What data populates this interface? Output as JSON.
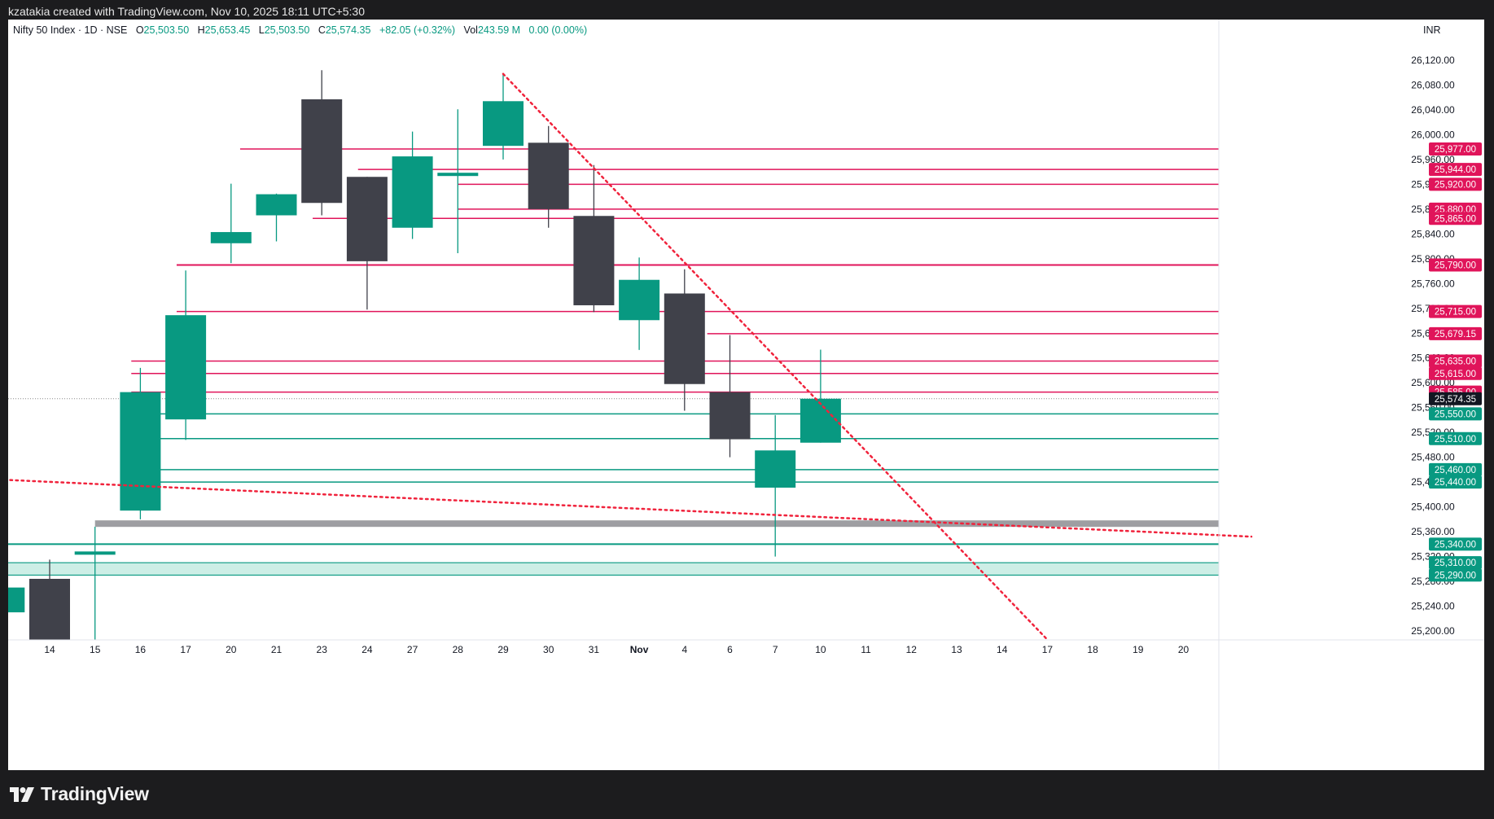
{
  "attribution": "kzatakia created with TradingView.com, Nov 10, 2025 18:11 UTC+5:30",
  "brand": "TradingView",
  "currency": "INR",
  "legend": {
    "symbol": "Nifty 50 Index · 1D · NSE",
    "o_label": "O",
    "o_value": "25,503.50",
    "h_label": "H",
    "h_value": "25,653.45",
    "l_label": "L",
    "l_value": "25,503.50",
    "c_label": "C",
    "c_value": "25,574.35",
    "change": "+82.05 (+0.32%)",
    "vol_label": "Vol",
    "vol_value": "243.59 M",
    "vol_extra": "0.00 (0.00%)"
  },
  "colors": {
    "up": "#089981",
    "down": "#40414a",
    "resistance": "#e0145a",
    "support": "#089981",
    "trendline": "#f0233c",
    "zone_fill": "#cdeee6",
    "band": "#9e9ea2",
    "last_price_bg": "#131722"
  },
  "chart_data": {
    "type": "candlestick",
    "title": "Nifty 50 Index · 1D · NSE",
    "x_tick_labels": [
      "14",
      "15",
      "16",
      "17",
      "20",
      "21",
      "23",
      "24",
      "27",
      "28",
      "29",
      "30",
      "31",
      "Nov",
      "4",
      "6",
      "7",
      "10",
      "11",
      "12",
      "13",
      "14",
      "17",
      "18",
      "19",
      "20"
    ],
    "y_tick_labels": [
      "26,120.00",
      "26,080.00",
      "26,040.00",
      "26,000.00",
      "25,960.00",
      "25,920.00",
      "25,880.00",
      "25,840.00",
      "25,800.00",
      "25,760.00",
      "25,720.00",
      "25,680.00",
      "25,640.00",
      "25,600.00",
      "25,560.00",
      "25,520.00",
      "25,480.00",
      "25,440.00",
      "25,400.00",
      "25,360.00",
      "25,320.00",
      "25,280.00",
      "25,240.00",
      "25,200.00"
    ],
    "ylim": [
      25182,
      26196
    ],
    "candles": [
      {
        "x": -1,
        "o": 25230,
        "h": 25270,
        "l": 25185,
        "c": 25270
      },
      {
        "x": 0,
        "o": 25284,
        "h": 25315,
        "l": 25182,
        "c": 25182
      },
      {
        "x": 1,
        "o": 25323,
        "h": 25368,
        "l": 25182,
        "c": 25328
      },
      {
        "x": 2,
        "o": 25394,
        "h": 25624,
        "l": 25380,
        "c": 25585
      },
      {
        "x": 3,
        "o": 25541,
        "h": 25781,
        "l": 25508,
        "c": 25709
      },
      {
        "x": 4,
        "o": 25825,
        "h": 25921,
        "l": 25793,
        "c": 25843
      },
      {
        "x": 5,
        "o": 25870,
        "h": 25905,
        "l": 25828,
        "c": 25904
      },
      {
        "x": 6,
        "o": 26057,
        "h": 26104,
        "l": 25870,
        "c": 25890
      },
      {
        "x": 7,
        "o": 25932,
        "h": 25932,
        "l": 25718,
        "c": 25796
      },
      {
        "x": 8,
        "o": 25850,
        "h": 26005,
        "l": 25832,
        "c": 25965
      },
      {
        "x": 9,
        "o": 25934,
        "h": 26041,
        "l": 25809,
        "c": 25938
      },
      {
        "x": 10,
        "o": 25982,
        "h": 26097,
        "l": 25960,
        "c": 26054
      },
      {
        "x": 11,
        "o": 25987,
        "h": 26014,
        "l": 25850,
        "c": 25880
      },
      {
        "x": 12,
        "o": 25869,
        "h": 25951,
        "l": 25714,
        "c": 25725
      },
      {
        "x": 13,
        "o": 25701,
        "h": 25802,
        "l": 25653,
        "c": 25766
      },
      {
        "x": 14,
        "o": 25744,
        "h": 25783,
        "l": 25555,
        "c": 25598
      },
      {
        "x": 15,
        "o": 25585,
        "h": 25677,
        "l": 25480,
        "c": 25509
      },
      {
        "x": 16,
        "o": 25431,
        "h": 25548,
        "l": 25320,
        "c": 25491
      },
      {
        "x": 17,
        "o": 25503.5,
        "h": 25653.45,
        "l": 25503.5,
        "c": 25574.35
      }
    ],
    "last_price": {
      "value": 25574.35,
      "label": "25,574.35"
    },
    "horizontal_levels": [
      {
        "value": 25977,
        "label": "25,977.00",
        "kind": "resistance",
        "from_x": 4.2
      },
      {
        "value": 25944,
        "label": "25,944.00",
        "kind": "resistance",
        "from_x": 6.8
      },
      {
        "value": 25920,
        "label": "25,920.00",
        "kind": "resistance",
        "from_x": 9
      },
      {
        "value": 25880,
        "label": "25,880.00",
        "kind": "resistance",
        "from_x": 9
      },
      {
        "value": 25865,
        "label": "25,865.00",
        "kind": "resistance",
        "from_x": 5.8
      },
      {
        "value": 25790,
        "label": "25,790.00",
        "kind": "resistance",
        "from_x": 2.8
      },
      {
        "value": 25715,
        "label": "25,715.00",
        "kind": "resistance",
        "from_x": 2.8
      },
      {
        "value": 25679.15,
        "label": "25,679.15",
        "kind": "resistance",
        "from_x": 14.5
      },
      {
        "value": 25635,
        "label": "25,635.00",
        "kind": "resistance",
        "from_x": 1.8
      },
      {
        "value": 25615,
        "label": "25,615.00",
        "kind": "resistance",
        "from_x": 1.8
      },
      {
        "value": 25585,
        "label": "25,585.00",
        "kind": "resistance",
        "from_x": 1.8
      },
      {
        "value": 25550,
        "label": "25,550.00",
        "kind": "support",
        "from_x": 1.8
      },
      {
        "value": 25510,
        "label": "25,510.00",
        "kind": "support",
        "from_x": 1.8
      },
      {
        "value": 25460,
        "label": "25,460.00",
        "kind": "support",
        "from_x": 1.8
      },
      {
        "value": 25440,
        "label": "25,440.00",
        "kind": "support",
        "from_x": 1.8
      },
      {
        "value": 25340,
        "label": "25,340.00",
        "kind": "support",
        "from_x": -2
      }
    ],
    "zones": [
      {
        "top": 25310,
        "bottom": 25290,
        "label_top": "25,310.00",
        "label_bottom": "25,290.00"
      }
    ],
    "bands": [
      {
        "value": 25373,
        "from_x": 1
      }
    ],
    "trendlines": [
      {
        "x1": -2,
        "y1": 25447,
        "x2": 26.5,
        "y2": 25352
      },
      {
        "x1": 10,
        "y1": 26098,
        "x2": 22,
        "y2": 25186
      }
    ]
  }
}
